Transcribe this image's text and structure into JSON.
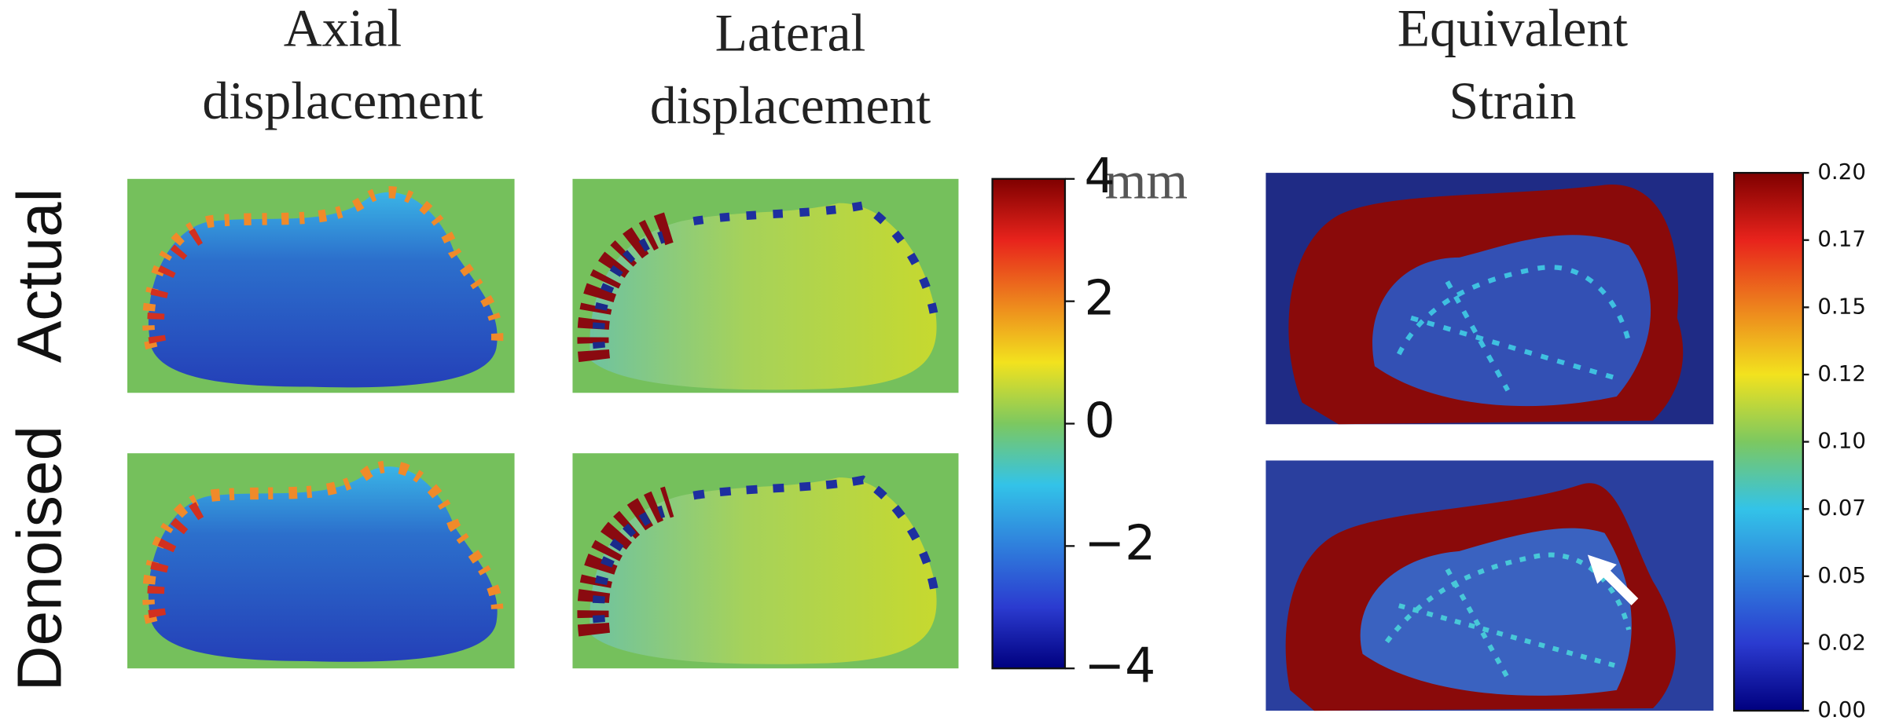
{
  "figure": {
    "column_titles": [
      [
        "Axial",
        "displacement"
      ],
      [
        "Lateral",
        "displacement"
      ],
      [
        "Equivalent",
        "Strain"
      ]
    ],
    "row_labels": [
      "Actual",
      "Denoised"
    ],
    "colorbars": [
      {
        "lim": [
          -4,
          4
        ],
        "unit": "mm",
        "ticks": [
          4,
          2,
          0,
          {
            "value": -2,
            "label": "−2"
          },
          {
            "value": -4,
            "label": "−4"
          }
        ]
      },
      {
        "lim": [
          0,
          0.2
        ],
        "ticks": [
          {
            "value": 0,
            "label": "0.00"
          },
          {
            "value": 0.025,
            "label": "0.02"
          },
          {
            "value": 0.05,
            "label": "0.05"
          },
          {
            "value": 0.075,
            "label": "0.07"
          },
          {
            "value": 0.1,
            "label": "0.10"
          },
          {
            "value": 0.125,
            "label": "0.12"
          },
          {
            "value": 0.15,
            "label": "0.15"
          },
          {
            "value": 0.175,
            "label": "0.17"
          },
          {
            "value": 0.2,
            "label": "0.20"
          }
        ]
      }
    ]
  }
}
